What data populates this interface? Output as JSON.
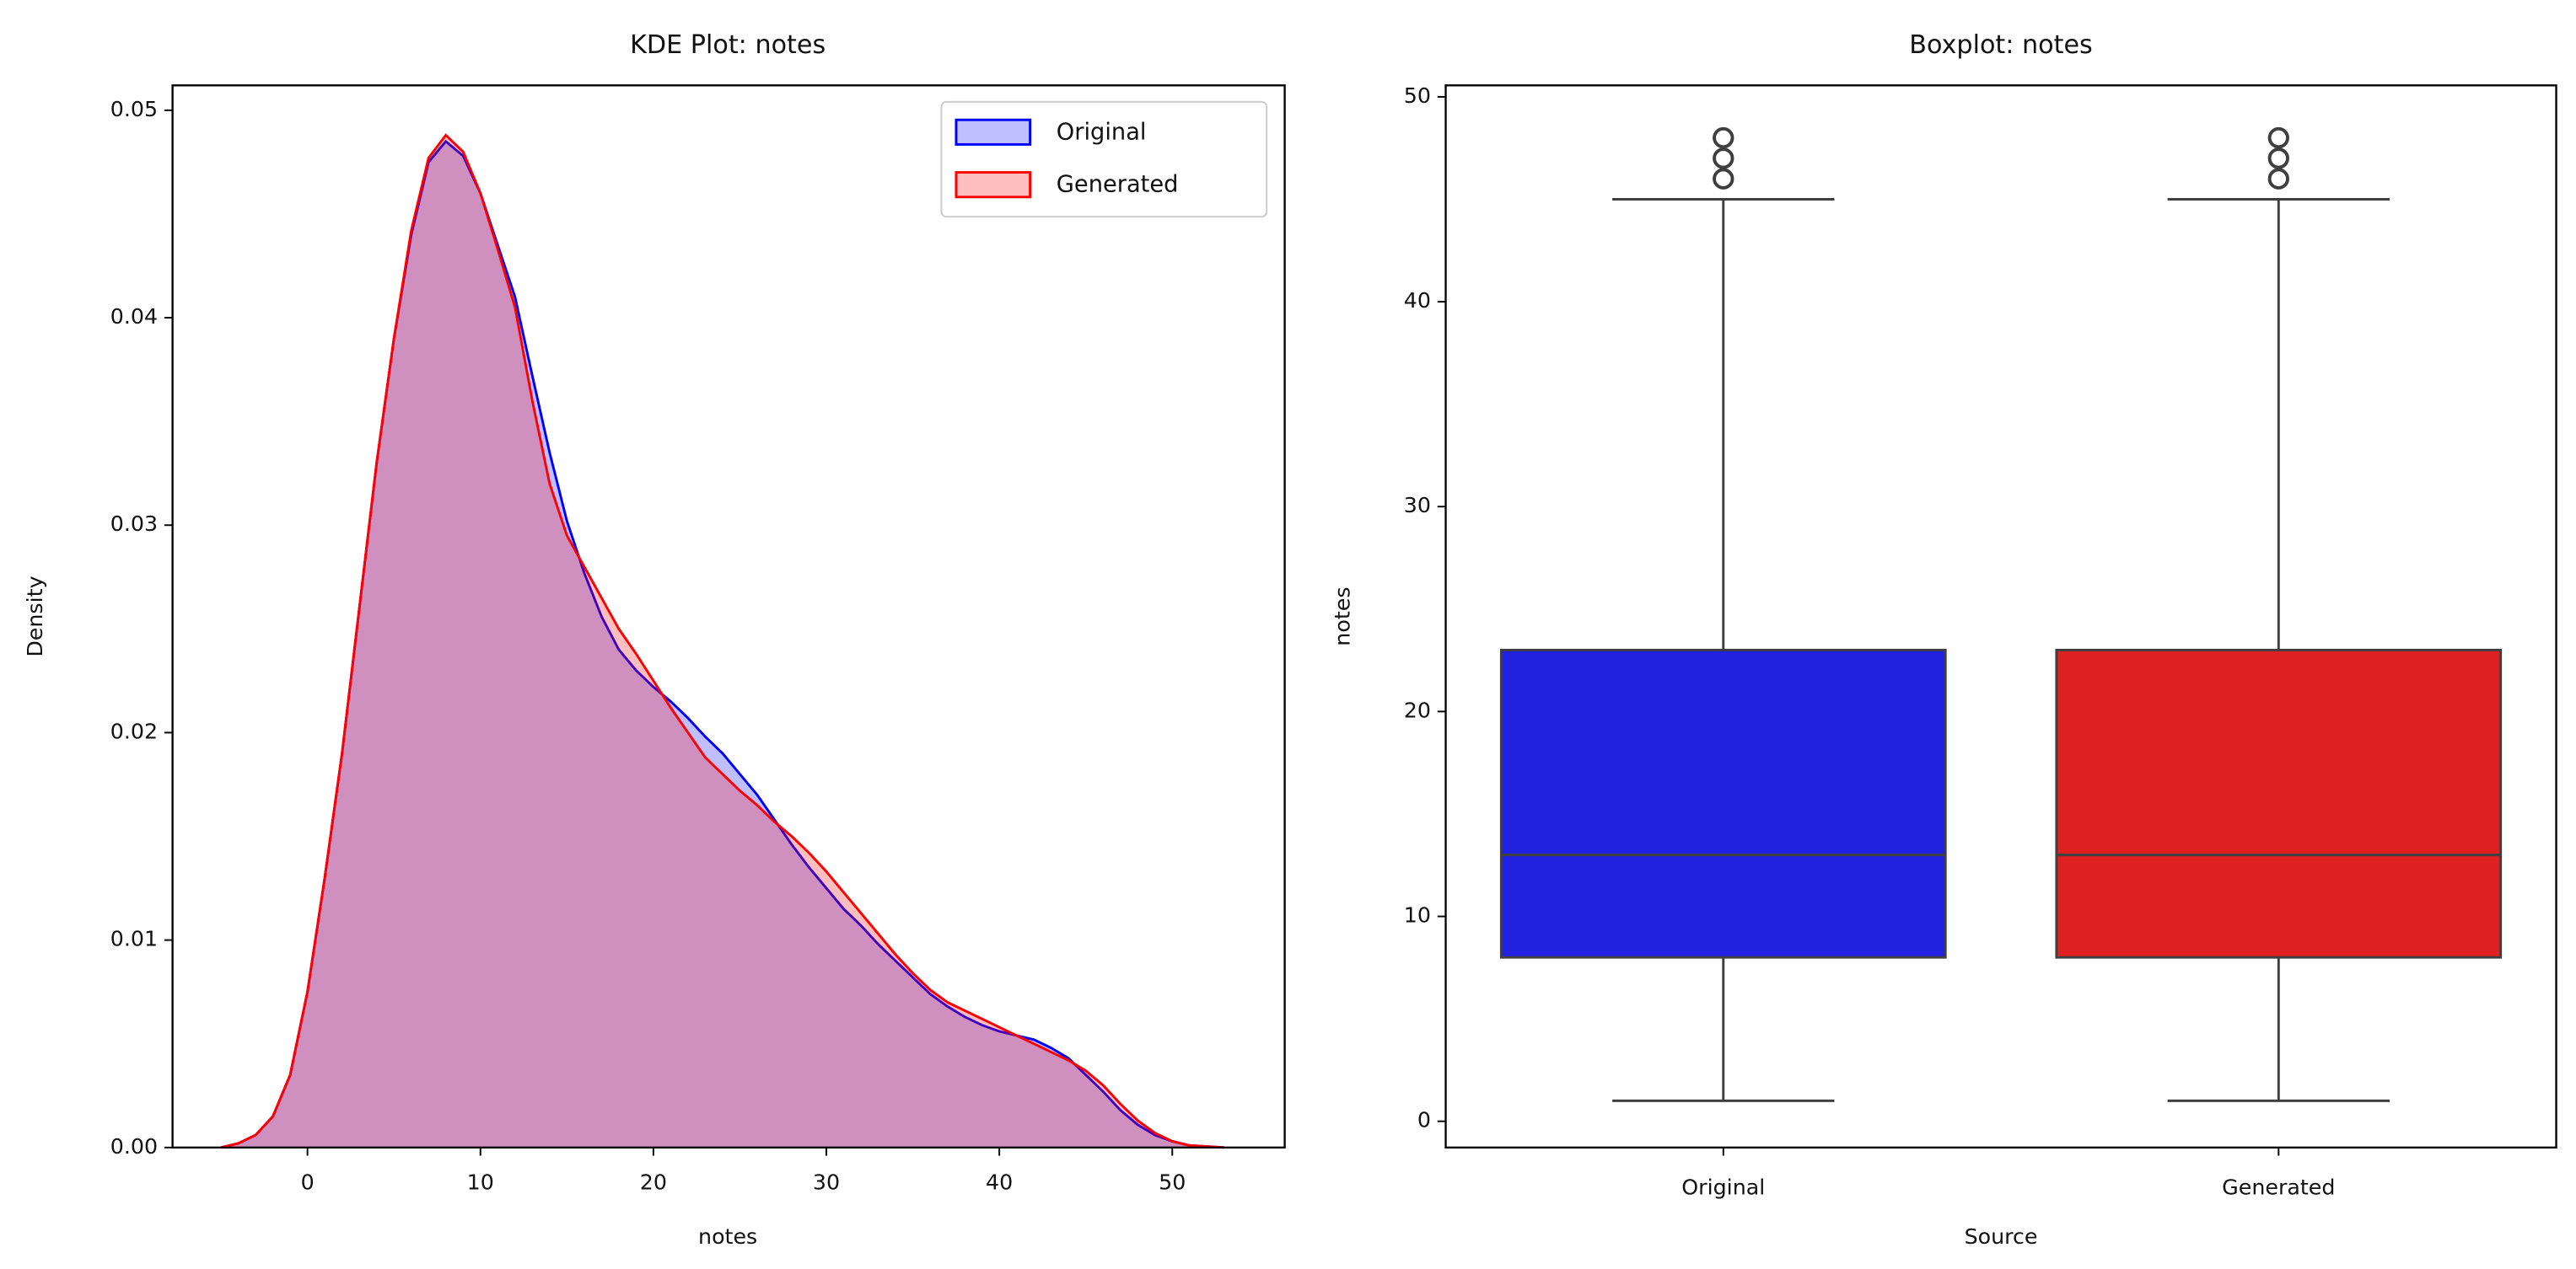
{
  "chart_data": [
    {
      "type": "area",
      "title": "KDE Plot: notes",
      "xlabel": "notes",
      "ylabel": "Density",
      "x": [
        -5,
        -4,
        -3,
        -2,
        -1,
        0,
        1,
        2,
        3,
        4,
        5,
        6,
        7,
        8,
        9,
        10,
        11,
        12,
        13,
        14,
        15,
        16,
        17,
        18,
        19,
        20,
        21,
        22,
        23,
        24,
        25,
        26,
        27,
        28,
        29,
        30,
        31,
        32,
        33,
        34,
        35,
        36,
        37,
        38,
        39,
        40,
        41,
        42,
        43,
        44,
        45,
        46,
        47,
        48,
        49,
        50,
        51,
        52,
        53
      ],
      "series": [
        {
          "name": "Original",
          "color": "#0000ff",
          "values": [
            0,
            0.0002,
            0.0006,
            0.0015,
            0.0035,
            0.0075,
            0.013,
            0.019,
            0.026,
            0.033,
            0.039,
            0.044,
            0.0475,
            0.0485,
            0.0478,
            0.046,
            0.0435,
            0.041,
            0.0372,
            0.0335,
            0.0302,
            0.0277,
            0.0256,
            0.024,
            0.023,
            0.0222,
            0.0215,
            0.0207,
            0.0198,
            0.019,
            0.018,
            0.017,
            0.0158,
            0.0146,
            0.0135,
            0.0125,
            0.0115,
            0.0107,
            0.0098,
            0.009,
            0.0082,
            0.0074,
            0.0068,
            0.0063,
            0.0059,
            0.0056,
            0.0054,
            0.0052,
            0.0048,
            0.0043,
            0.0035,
            0.0027,
            0.0018,
            0.0011,
            0.0006,
            0.0003,
            0.0001,
            5e-05,
            0
          ]
        },
        {
          "name": "Generated",
          "color": "#ff0000",
          "values": [
            0,
            0.0002,
            0.0006,
            0.0015,
            0.0035,
            0.0075,
            0.013,
            0.019,
            0.026,
            0.033,
            0.039,
            0.0442,
            0.0477,
            0.0488,
            0.048,
            0.046,
            0.0433,
            0.0405,
            0.036,
            0.032,
            0.0295,
            0.028,
            0.0265,
            0.025,
            0.0238,
            0.0225,
            0.0212,
            0.02,
            0.0188,
            0.018,
            0.0172,
            0.0165,
            0.0157,
            0.015,
            0.0142,
            0.0133,
            0.0123,
            0.0113,
            0.0103,
            0.0093,
            0.0084,
            0.0076,
            0.007,
            0.0066,
            0.0062,
            0.0058,
            0.0054,
            0.005,
            0.0046,
            0.0042,
            0.0037,
            0.003,
            0.0021,
            0.0013,
            0.0007,
            0.0003,
            0.0001,
            5e-05,
            0
          ]
        }
      ],
      "xlim": [
        -7.8,
        56.5
      ],
      "xticks": [
        0,
        10,
        20,
        30,
        40,
        50
      ],
      "ylim": [
        0,
        0.0512
      ],
      "yticks": [
        {
          "value": 0,
          "label": "0.00"
        },
        0.01,
        0.02,
        0.03,
        0.04,
        0.05
      ],
      "legend": "upper right"
    },
    {
      "type": "box",
      "title": "Boxplot: notes",
      "xlabel": "Source",
      "ylabel": "notes",
      "categories": [
        "Original",
        "Generated"
      ],
      "colors": [
        "#2121e0",
        "#df2020"
      ],
      "stats": [
        {
          "whislo": 1,
          "q1": 8,
          "median": 13,
          "q3": 23,
          "whishi": 45,
          "fliers": [
            46,
            47,
            48
          ]
        },
        {
          "whislo": 1,
          "q1": 8,
          "median": 13,
          "q3": 23,
          "whishi": 45,
          "fliers": [
            46,
            47,
            48
          ]
        }
      ],
      "ylim": [
        -1.28,
        50.56
      ],
      "yticks": [
        0,
        10,
        20,
        30,
        40,
        50
      ]
    }
  ]
}
